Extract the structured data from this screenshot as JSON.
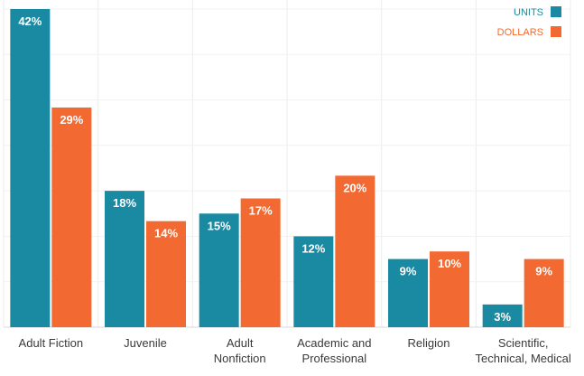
{
  "chart_data": {
    "type": "bar",
    "categories": [
      "Adult Fiction",
      "Juvenile",
      "Adult Nonfiction",
      "Academic and Professional",
      "Religion",
      "Scientific, Technical, Medical"
    ],
    "category_label_lines": [
      [
        "Adult Fiction"
      ],
      [
        "Juvenile"
      ],
      [
        "Adult",
        "Nonfiction"
      ],
      [
        "Academic and",
        "Professional"
      ],
      [
        "Religion"
      ],
      [
        "Scientific,",
        "Technical, Medical"
      ]
    ],
    "series": [
      {
        "name": "UNITS",
        "color": "#1a8aa3",
        "values": [
          42,
          18,
          15,
          12,
          9,
          3
        ],
        "labels": [
          "42%",
          "18%",
          "15%",
          "12%",
          "9%",
          "3%"
        ]
      },
      {
        "name": "DOLLARS",
        "color": "#f26a32",
        "values": [
          29,
          14,
          17,
          20,
          10,
          9
        ],
        "labels": [
          "29%",
          "14%",
          "17%",
          "20%",
          "10%",
          "9%"
        ]
      }
    ],
    "ylim": [
      0,
      42
    ],
    "grid": true,
    "legend_position": "top-right",
    "xlabel": "",
    "ylabel": ""
  }
}
